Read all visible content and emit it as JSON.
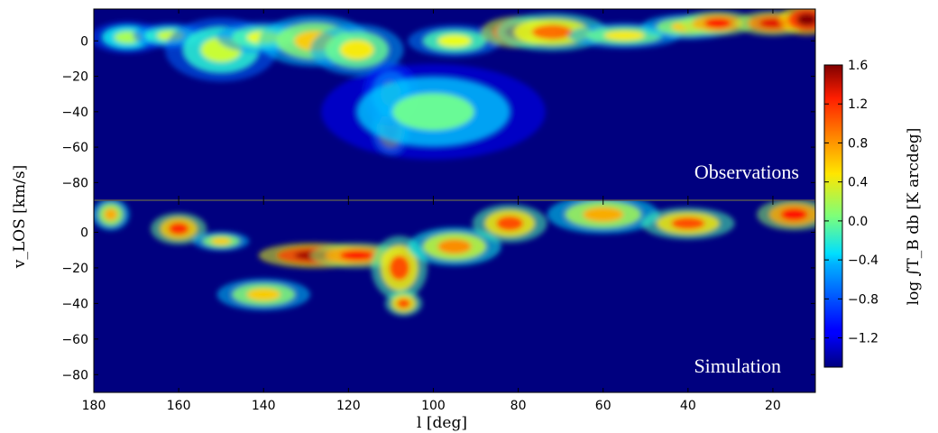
{
  "figure": {
    "xlabel": "l [deg]",
    "ylabel": "v_LOS [km/s]",
    "colorbar_label": "log ∫T_B db [K arcdeg]"
  },
  "chart_data": {
    "type": "heatmap",
    "x_axis": {
      "label": "l [deg]",
      "range": [
        180,
        10
      ],
      "ticks": [
        180,
        160,
        140,
        120,
        100,
        80,
        60,
        40,
        20
      ]
    },
    "y_axis": {
      "label": "v_LOS [km/s]",
      "range": [
        -90,
        18
      ],
      "ticks": [
        0,
        -20,
        -40,
        -60,
        -80
      ]
    },
    "colorbar": {
      "label": "log ∫T_B db [K arcdeg]",
      "range": [
        -1.5,
        1.6
      ],
      "ticks": [
        1.6,
        1.2,
        0.8,
        0.4,
        0.0,
        -0.4,
        -0.8,
        -1.2
      ],
      "tick_labels": [
        "1.6",
        "1.2",
        "0.8",
        "0.4",
        "0.0",
        "−0.4",
        "−0.8",
        "−1.2"
      ],
      "colormap": "jet"
    },
    "panels": [
      {
        "name": "Observations",
        "label": "Observations",
        "emission_features": [
          {
            "l": 172,
            "v": 2,
            "sl": 4,
            "sv": 5,
            "level": 0.2
          },
          {
            "l": 162,
            "v": 3,
            "sl": 4,
            "sv": 4,
            "level": 0.3
          },
          {
            "l": 150,
            "v": -5,
            "sl": 6,
            "sv": 10,
            "level": 0.3
          },
          {
            "l": 140,
            "v": 2,
            "sl": 5,
            "sv": 5,
            "level": 0.4
          },
          {
            "l": 128,
            "v": 0,
            "sl": 6,
            "sv": 8,
            "level": 0.6
          },
          {
            "l": 118,
            "v": -5,
            "sl": 5,
            "sv": 8,
            "level": 0.5
          },
          {
            "l": 110,
            "v": -50,
            "sl": 2,
            "sv": 8,
            "level": 0.9
          },
          {
            "l": 110,
            "v": -30,
            "sl": 3,
            "sv": 10,
            "level": 0.2
          },
          {
            "l": 100,
            "v": -40,
            "sl": 12,
            "sv": 15,
            "level": 0.0
          },
          {
            "l": 95,
            "v": 0,
            "sl": 5,
            "sv": 5,
            "level": 0.4
          },
          {
            "l": 80,
            "v": 5,
            "sl": 4,
            "sv": 5,
            "level": 1.4
          },
          {
            "l": 72,
            "v": 5,
            "sl": 6,
            "sv": 6,
            "level": 0.9
          },
          {
            "l": 55,
            "v": 3,
            "sl": 6,
            "sv": 4,
            "level": 0.5
          },
          {
            "l": 40,
            "v": 8,
            "sl": 5,
            "sv": 4,
            "level": 0.6
          },
          {
            "l": 33,
            "v": 10,
            "sl": 4,
            "sv": 4,
            "level": 1.2
          },
          {
            "l": 20,
            "v": 10,
            "sl": 4,
            "sv": 4,
            "level": 1.3
          },
          {
            "l": 12,
            "v": 12,
            "sl": 3,
            "sv": 5,
            "level": 1.6
          }
        ]
      },
      {
        "name": "Simulation",
        "label": "Simulation",
        "emission_features": [
          {
            "l": 176,
            "v": 10,
            "sl": 2,
            "sv": 5,
            "level": 0.7
          },
          {
            "l": 160,
            "v": 2,
            "sl": 3,
            "sv": 5,
            "level": 1.1
          },
          {
            "l": 150,
            "v": -5,
            "sl": 3,
            "sv": 3,
            "level": 0.6
          },
          {
            "l": 140,
            "v": -35,
            "sl": 5,
            "sv": 5,
            "level": 0.6
          },
          {
            "l": 128,
            "v": -13,
            "sl": 6,
            "sv": 4,
            "level": 1.5
          },
          {
            "l": 118,
            "v": -13,
            "sl": 5,
            "sv": 4,
            "level": 1.2
          },
          {
            "l": 108,
            "v": -20,
            "sl": 3,
            "sv": 10,
            "level": 1.0
          },
          {
            "l": 107,
            "v": -40,
            "sl": 2,
            "sv": 4,
            "level": 1.0
          },
          {
            "l": 95,
            "v": -8,
            "sl": 5,
            "sv": 6,
            "level": 0.8
          },
          {
            "l": 82,
            "v": 5,
            "sl": 4,
            "sv": 6,
            "level": 1.0
          },
          {
            "l": 60,
            "v": 10,
            "sl": 6,
            "sv": 6,
            "level": 0.7
          },
          {
            "l": 40,
            "v": 5,
            "sl": 5,
            "sv": 5,
            "level": 1.0
          },
          {
            "l": 15,
            "v": 10,
            "sl": 4,
            "sv": 5,
            "level": 1.2
          }
        ]
      }
    ]
  }
}
